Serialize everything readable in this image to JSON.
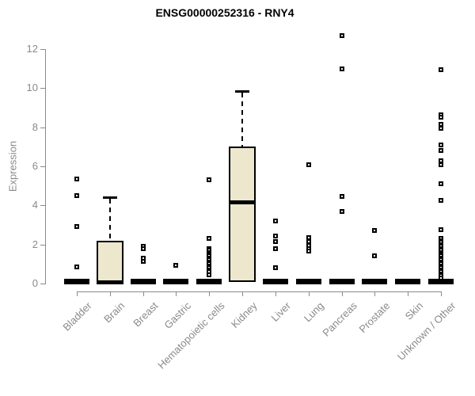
{
  "chart_data": {
    "type": "boxplot",
    "title": "ENSG00000252316 - RNY4",
    "xlabel": "",
    "ylabel": "Expression",
    "ylim": [
      0,
      12.9
    ],
    "yticks": [
      0,
      2,
      4,
      6,
      8,
      10,
      12
    ],
    "grid": false,
    "legend": "none",
    "categories": [
      "Bladder",
      "Brain",
      "Breast",
      "Gastric",
      "Hematopoietic cells",
      "Kidney",
      "Liver",
      "Lung",
      "Pancreas",
      "Prostate",
      "Skin",
      "Unknown / Other"
    ],
    "series": [
      {
        "category": "Bladder",
        "q1": 0,
        "median": 0.05,
        "q3": 0.1,
        "whisker_low": 0,
        "whisker_high": 0.1,
        "outliers": [
          5.35,
          4.5,
          2.9,
          0.85
        ]
      },
      {
        "category": "Brain",
        "q1": 0,
        "median": 0.08,
        "q3": 2.2,
        "whisker_low": 0,
        "whisker_high": 4.4,
        "outliers": []
      },
      {
        "category": "Breast",
        "q1": 0,
        "median": 0.05,
        "q3": 0.1,
        "whisker_low": 0,
        "whisker_high": 0.1,
        "outliers": [
          1.9,
          1.8,
          1.3,
          1.15
        ]
      },
      {
        "category": "Gastric",
        "q1": 0,
        "median": 0.05,
        "q3": 0.1,
        "whisker_low": 0,
        "whisker_high": 0.1,
        "outliers": [
          0.95
        ]
      },
      {
        "category": "Hematopoietic cells",
        "q1": 0,
        "median": 0.05,
        "q3": 0.1,
        "whisker_low": 0,
        "whisker_high": 0.1,
        "outliers": [
          5.3,
          2.3,
          1.8,
          1.7,
          1.6,
          1.5,
          1.4,
          1.3,
          1.2,
          1.1,
          1.0,
          0.9,
          0.8,
          0.7,
          0.6,
          0.45
        ]
      },
      {
        "category": "Kidney",
        "q1": 0.1,
        "median": 4.15,
        "q3": 7.0,
        "whisker_low": 0.1,
        "whisker_high": 9.85,
        "outliers": []
      },
      {
        "category": "Liver",
        "q1": 0,
        "median": 0.05,
        "q3": 0.1,
        "whisker_low": 0,
        "whisker_high": 0.1,
        "outliers": [
          3.2,
          2.45,
          2.15,
          1.8,
          0.8
        ]
      },
      {
        "category": "Lung",
        "q1": 0,
        "median": 0.05,
        "q3": 0.1,
        "whisker_low": 0,
        "whisker_high": 0.1,
        "outliers": [
          6.1,
          2.35,
          2.15,
          1.95,
          1.8,
          1.65
        ]
      },
      {
        "category": "Pancreas",
        "q1": 0,
        "median": 0.05,
        "q3": 0.1,
        "whisker_low": 0,
        "whisker_high": 0.1,
        "outliers": [
          12.7,
          11.0,
          4.45,
          3.7
        ]
      },
      {
        "category": "Prostate",
        "q1": 0,
        "median": 0.05,
        "q3": 0.1,
        "whisker_low": 0,
        "whisker_high": 0.1,
        "outliers": [
          2.7,
          1.4
        ]
      },
      {
        "category": "Skin",
        "q1": 0,
        "median": 0.05,
        "q3": 0.1,
        "whisker_low": 0,
        "whisker_high": 0.1,
        "outliers": []
      },
      {
        "category": "Unknown / Other",
        "q1": 0,
        "median": 0.05,
        "q3": 0.1,
        "whisker_low": 0,
        "whisker_high": 0.1,
        "outliers": [
          10.95,
          8.65,
          8.5,
          8.15,
          7.95,
          7.1,
          6.8,
          6.3,
          6.1,
          5.1,
          4.25,
          2.75,
          2.3,
          2.2,
          2.1,
          2.0,
          1.9,
          1.8,
          1.7,
          1.6,
          1.5,
          1.4,
          1.3,
          1.2,
          1.1,
          1.0,
          0.9,
          0.8,
          0.7,
          0.6,
          0.5,
          0.4,
          0.3
        ]
      }
    ],
    "colors": {
      "box_fill": "#EDE7CE",
      "box_border": "#000000",
      "median": "#000000",
      "whisker": "#000000",
      "outlier_border": "#000000",
      "outlier_fill": "#FFFFFF",
      "axis": "#8A8A8A",
      "tick_label": "#8A8A8A",
      "title": "#000000",
      "background": "#FFFFFF"
    }
  }
}
